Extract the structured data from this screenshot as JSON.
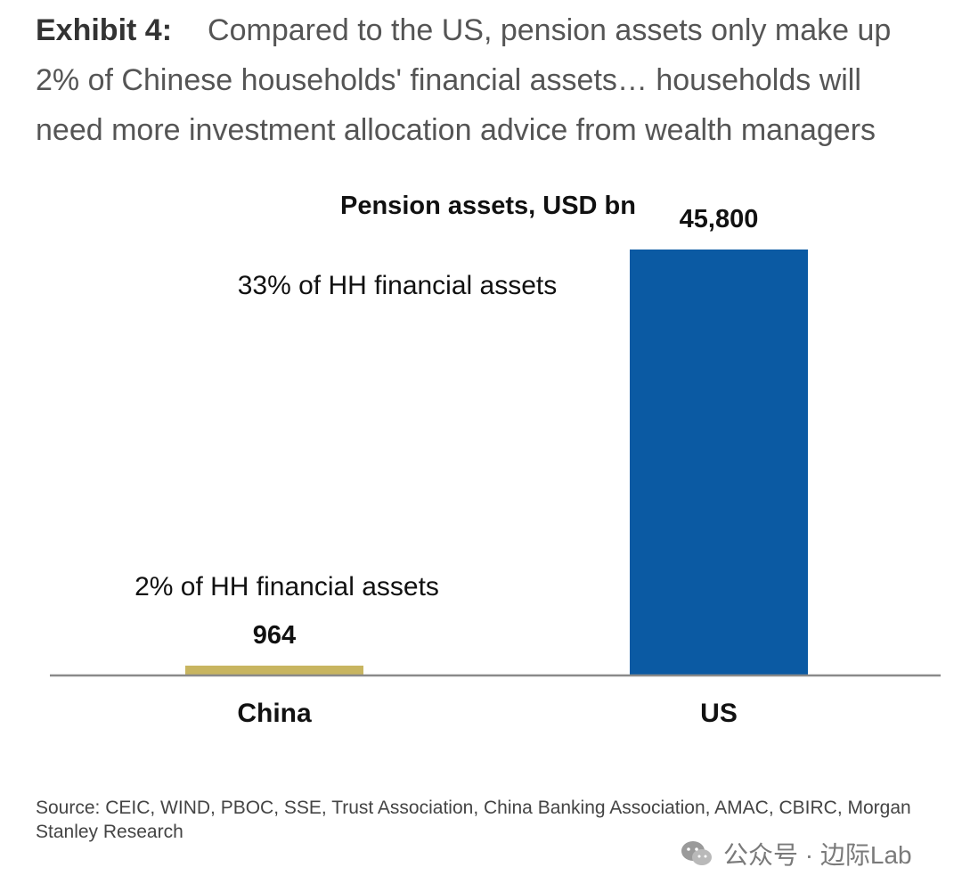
{
  "header": {
    "exhibit_label": "Exhibit 4:",
    "title": "Compared to the US, pension assets only make up 2% of Chinese households' financial assets… households will need more investment allocation advice from wealth managers"
  },
  "chart_data": {
    "type": "bar",
    "title": "Pension assets, USD  bn",
    "categories": [
      "China",
      "US"
    ],
    "values": [
      964,
      45800
    ],
    "value_labels": [
      "964",
      "45,800"
    ],
    "annotations": [
      "2% of HH financial assets",
      "33% of HH financial assets"
    ],
    "colors": [
      "#C8B560",
      "#0B5AA3"
    ],
    "ylim": [
      0,
      45800
    ],
    "xlabel": "",
    "ylabel": "",
    "grid": false
  },
  "source": "Source: CEIC, WIND, PBOC, SSE, Trust Association, China Banking Association, AMAC, CBIRC, Morgan Stanley Research",
  "watermark": {
    "text": "公众号 · 边际Lab",
    "icon": "wechat-icon"
  }
}
